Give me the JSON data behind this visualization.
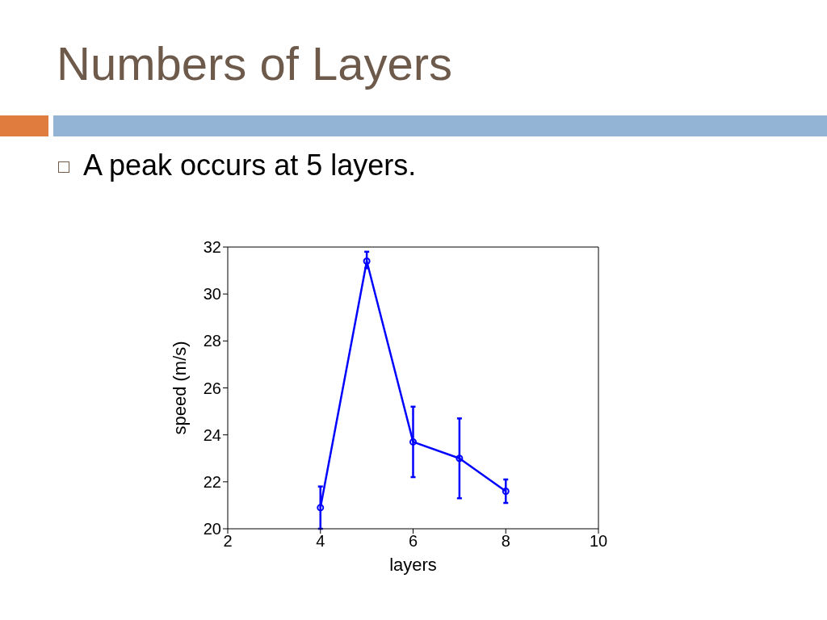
{
  "chart_data": {
    "type": "line",
    "title": "Numbers of Layers",
    "subtitle": "A peak occurs at 5 layers.",
    "xlabel": "layers",
    "ylabel": "speed (m/s)",
    "x": [
      4,
      5,
      6,
      7,
      8
    ],
    "series": [
      {
        "color": "#0000ff",
        "values": [
          20.9,
          31.4,
          23.7,
          23.0,
          21.6
        ],
        "errors": [
          0.9,
          [
            31.1,
            31.8
          ],
          1.5,
          1.7,
          0.5
        ]
      }
    ],
    "xlim": [
      2,
      10
    ],
    "xticks": [
      2,
      4,
      6,
      8,
      10
    ],
    "ylim": [
      20,
      32
    ],
    "yticks": [
      20,
      22,
      24,
      26,
      28,
      30,
      32
    ],
    "marker": "circle",
    "line_style": "solid"
  }
}
